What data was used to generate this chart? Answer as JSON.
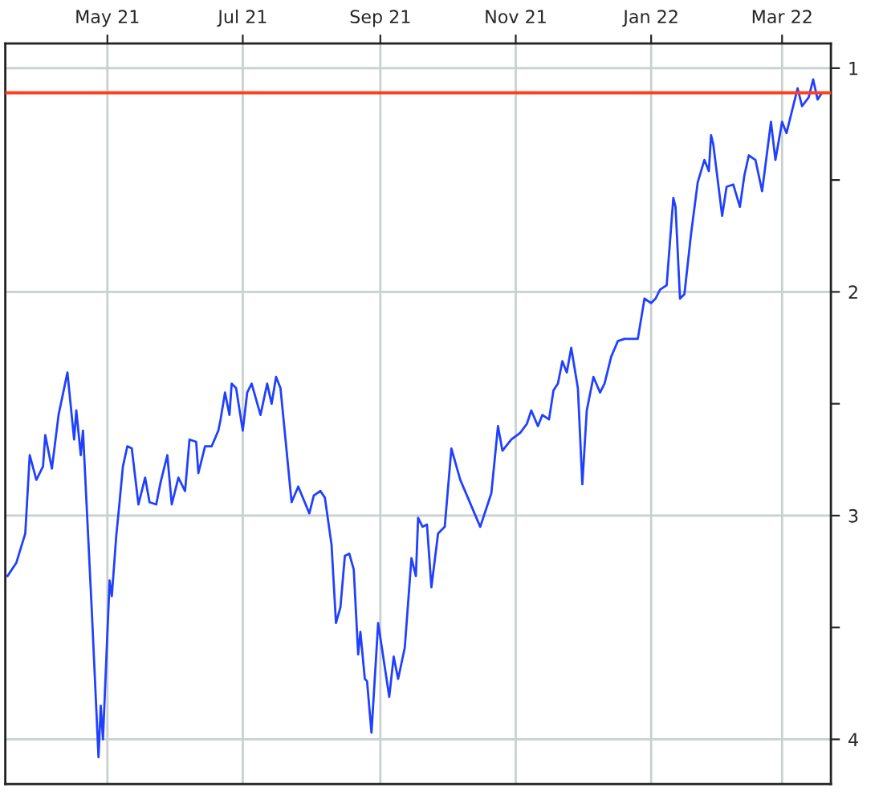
{
  "chart_data": {
    "type": "line",
    "xlim": [
      "2021-03-16",
      "2022-03-23"
    ],
    "xticks": [
      {
        "value": "2021-05-01",
        "label": "May 21"
      },
      {
        "value": "2021-07-01",
        "label": "Jul 21"
      },
      {
        "value": "2021-09-01",
        "label": "Sep 21"
      },
      {
        "value": "2021-11-01",
        "label": "Nov 21"
      },
      {
        "value": "2022-01-01",
        "label": "Jan 22"
      },
      {
        "value": "2022-03-01",
        "label": "Mar 22"
      }
    ],
    "ylim": [
      4.2,
      0.89
    ],
    "yticks": [
      1,
      {
        "value": 1.5,
        "label": null
      },
      2,
      {
        "value": 2.5,
        "label": null
      },
      3,
      {
        "value": 3.5,
        "label": null
      },
      4
    ],
    "grid": true,
    "series": [
      {
        "color": "#2040ff",
        "x": [
          "2021-03-17",
          "2021-03-21",
          "2021-03-25",
          "2021-03-27",
          "2021-03-30",
          "2021-04-02",
          "2021-04-03",
          "2021-04-06",
          "2021-04-09",
          "2021-04-13",
          "2021-04-16",
          "2021-04-17",
          "2021-04-19",
          "2021-04-20",
          "2021-04-24",
          "2021-04-27",
          "2021-04-28",
          "2021-04-29",
          "2021-05-02",
          "2021-05-03",
          "2021-05-05",
          "2021-05-06",
          "2021-05-08",
          "2021-05-10",
          "2021-05-12",
          "2021-05-15",
          "2021-05-18",
          "2021-05-20",
          "2021-05-23",
          "2021-05-25",
          "2021-05-28",
          "2021-05-30",
          "2021-06-02",
          "2021-06-05",
          "2021-06-07",
          "2021-06-10",
          "2021-06-11",
          "2021-06-14",
          "2021-06-17",
          "2021-06-20",
          "2021-06-21",
          "2021-06-23",
          "2021-06-25",
          "2021-06-26",
          "2021-06-28",
          "2021-07-01",
          "2021-07-03",
          "2021-07-05",
          "2021-07-09",
          "2021-07-12",
          "2021-07-14",
          "2021-07-16",
          "2021-07-18",
          "2021-07-23",
          "2021-07-26",
          "2021-07-31",
          "2021-08-02",
          "2021-08-05",
          "2021-08-07",
          "2021-08-10",
          "2021-08-12",
          "2021-08-14",
          "2021-08-16",
          "2021-08-18",
          "2021-08-20",
          "2021-08-22",
          "2021-08-23",
          "2021-08-25",
          "2021-08-26",
          "2021-08-28",
          "2021-08-31",
          "2021-09-05",
          "2021-09-07",
          "2021-09-09",
          "2021-09-12",
          "2021-09-15",
          "2021-09-17",
          "2021-09-18",
          "2021-09-20",
          "2021-09-22",
          "2021-09-24",
          "2021-09-27",
          "2021-09-30",
          "2021-10-03",
          "2021-10-07",
          "2021-10-16",
          "2021-10-21",
          "2021-10-24",
          "2021-10-26",
          "2021-10-30",
          "2021-11-03",
          "2021-11-06",
          "2021-11-08",
          "2021-11-11",
          "2021-11-13",
          "2021-11-16",
          "2021-11-18",
          "2021-11-20",
          "2021-11-22",
          "2021-11-24",
          "2021-11-26",
          "2021-11-29",
          "2021-12-01",
          "2021-12-03",
          "2021-12-06",
          "2021-12-09",
          "2021-12-11",
          "2021-12-14",
          "2021-12-17",
          "2021-12-20",
          "2021-12-26",
          "2021-12-29",
          "2022-01-01",
          "2022-01-03",
          "2022-01-05",
          "2022-01-08",
          "2022-01-11",
          "2022-01-12",
          "2022-01-14",
          "2022-01-16",
          "2022-01-19",
          "2022-01-22",
          "2022-01-25",
          "2022-01-27",
          "2022-01-28",
          "2022-01-29",
          "2022-02-02",
          "2022-02-04",
          "2022-02-07",
          "2022-02-10",
          "2022-02-12",
          "2022-02-14",
          "2022-02-17",
          "2022-02-20",
          "2022-02-24",
          "2022-02-26",
          "2022-03-01",
          "2022-03-03",
          "2022-03-08",
          "2022-03-10",
          "2022-03-13",
          "2022-03-15",
          "2022-03-17",
          "2022-03-19"
        ],
        "values": [
          3.27,
          3.21,
          3.08,
          2.73,
          2.84,
          2.78,
          2.64,
          2.79,
          2.55,
          2.36,
          2.66,
          2.53,
          2.73,
          2.62,
          3.43,
          4.08,
          3.85,
          4.0,
          3.29,
          3.36,
          3.09,
          2.99,
          2.78,
          2.69,
          2.7,
          2.95,
          2.83,
          2.94,
          2.95,
          2.85,
          2.73,
          2.95,
          2.83,
          2.89,
          2.66,
          2.67,
          2.81,
          2.69,
          2.69,
          2.62,
          2.57,
          2.45,
          2.55,
          2.41,
          2.43,
          2.62,
          2.45,
          2.41,
          2.55,
          2.41,
          2.5,
          2.38,
          2.43,
          2.94,
          2.87,
          2.99,
          2.91,
          2.89,
          2.92,
          3.13,
          3.48,
          3.41,
          3.18,
          3.17,
          3.24,
          3.62,
          3.52,
          3.73,
          3.74,
          3.97,
          3.48,
          3.81,
          3.63,
          3.73,
          3.59,
          3.19,
          3.27,
          3.01,
          3.05,
          3.04,
          3.32,
          3.08,
          3.05,
          2.7,
          2.84,
          3.05,
          2.9,
          2.6,
          2.71,
          2.66,
          2.63,
          2.59,
          2.53,
          2.6,
          2.55,
          2.57,
          2.44,
          2.41,
          2.31,
          2.36,
          2.25,
          2.43,
          2.86,
          2.53,
          2.38,
          2.45,
          2.41,
          2.29,
          2.22,
          2.21,
          2.21,
          2.03,
          2.05,
          2.03,
          1.99,
          1.97,
          1.58,
          1.62,
          2.03,
          2.01,
          1.74,
          1.51,
          1.41,
          1.46,
          1.3,
          1.34,
          1.66,
          1.53,
          1.52,
          1.62,
          1.48,
          1.39,
          1.41,
          1.55,
          1.24,
          1.41,
          1.24,
          1.29,
          1.09,
          1.17,
          1.13,
          1.05,
          1.14,
          1.11
        ]
      }
    ],
    "ref_lines": [
      {
        "axis": "y",
        "value": 1.11,
        "color": "#ff4020"
      }
    ]
  }
}
